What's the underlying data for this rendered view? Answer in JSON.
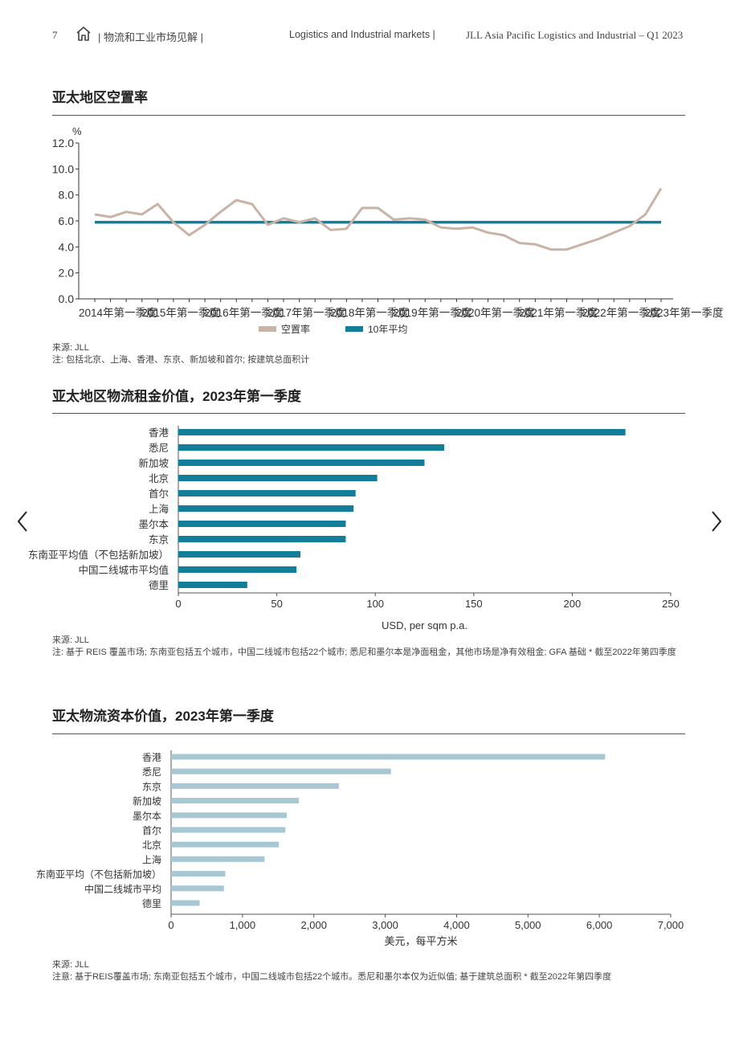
{
  "header": {
    "page_number": "7",
    "left_title": "| 物流和工业市场见解 |",
    "center_title": "Logistics and Industrial markets |",
    "right_title": "JLL Asia Pacific Logistics and Industrial – Q1 2023"
  },
  "nav": {
    "prev": "‹",
    "next": "›"
  },
  "section1": {
    "title": "亚太地区空置率",
    "source": "来源: JLL",
    "note": "注: 包括北京、上海、香港、东京、新加坡和首尔; 按建筑总面积计"
  },
  "section2": {
    "title": "亚太地区物流租金价值，2023年第一季度",
    "source": "来源: JLL",
    "note": "注: 基于 REIS 覆盖市场; 东南亚包括五个城市，中国二线城市包括22个城市; 悉尼和墨尔本是净面租金，其他市场是净有效租金; GFA 基础 * 截至2022年第四季度"
  },
  "section3": {
    "title": "亚太物流资本价值，2023年第一季度",
    "source": "来源:  JLL",
    "note": "注意:  基于REIS覆盖市场;  东南亚包括五个城市，中国二线城市包括22个城市。悉尼和墨尔本仅为近似值;  基于建筑总面积 * 截至2022年第四季度"
  },
  "chart_data": [
    {
      "type": "line",
      "ylabel": "%",
      "ylim": [
        0,
        12
      ],
      "yticks": [
        "0.0",
        "2.0",
        "4.0",
        "6.0",
        "8.0",
        "10.0",
        "12.0"
      ],
      "x_labels": [
        "2014年第一季度",
        "2015年第一季度",
        "2016年第一季度",
        "2017年第一季度",
        "2018年第一季度",
        "2019年第一季度",
        "2020年第一季度",
        "2021年第一季度",
        "2022年第一季度",
        "2023年第一季度"
      ],
      "legend_position": "bottom",
      "series": [
        {
          "name": "空置率",
          "color": "#c9b3a6",
          "values": [
            6.5,
            6.3,
            6.7,
            6.5,
            7.3,
            5.9,
            4.9,
            5.7,
            6.7,
            7.6,
            7.3,
            5.7,
            6.2,
            5.9,
            6.2,
            5.3,
            5.4,
            7.0,
            7.0,
            6.1,
            6.2,
            6.1,
            5.5,
            5.4,
            5.5,
            5.1,
            4.9,
            4.3,
            4.2,
            3.8,
            3.8,
            4.2,
            4.6,
            5.1,
            5.6,
            6.5,
            8.5
          ]
        },
        {
          "name": "10年平均",
          "color": "#137e9a",
          "values": [
            5.9,
            5.9,
            5.9,
            5.9,
            5.9,
            5.9,
            5.9,
            5.9,
            5.9,
            5.9,
            5.9,
            5.9,
            5.9,
            5.9,
            5.9,
            5.9,
            5.9,
            5.9,
            5.9,
            5.9,
            5.9,
            5.9,
            5.9,
            5.9,
            5.9,
            5.9,
            5.9,
            5.9,
            5.9,
            5.9,
            5.9,
            5.9,
            5.9,
            5.9,
            5.9,
            5.9,
            5.9
          ]
        }
      ]
    },
    {
      "type": "bar",
      "orientation": "horizontal",
      "categories": [
        "香港",
        "悉尼",
        "新加坡",
        "北京",
        "首尔",
        "上海",
        "墨尔本",
        "东京",
        "东南亚平均值（不包括新加坡）",
        "中国二线城市平均值",
        "德里"
      ],
      "values": [
        227,
        135,
        125,
        101,
        90,
        89,
        85,
        85,
        62,
        60,
        35
      ],
      "xlabel": "USD, per sqm p.a.",
      "xlim": [
        0,
        250
      ],
      "xticks": [
        "0",
        "50",
        "100",
        "150",
        "200",
        "250"
      ],
      "color": "#137e9a"
    },
    {
      "type": "bar",
      "orientation": "horizontal",
      "categories": [
        "香港",
        "悉尼",
        "东京",
        "新加坡",
        "墨尔本",
        "首尔",
        "北京",
        "上海",
        "东南亚平均（不包括新加坡）",
        "中国二线城市平均",
        "德里"
      ],
      "values": [
        6080,
        3080,
        2350,
        1790,
        1620,
        1600,
        1510,
        1310,
        760,
        740,
        400
      ],
      "xlabel": "美元，每平方米",
      "xlim": [
        0,
        7000
      ],
      "xticks": [
        "0",
        "1,000",
        "2,000",
        "3,000",
        "4,000",
        "5,000",
        "6,000",
        "7,000"
      ],
      "color": "#a7c8d3"
    }
  ]
}
